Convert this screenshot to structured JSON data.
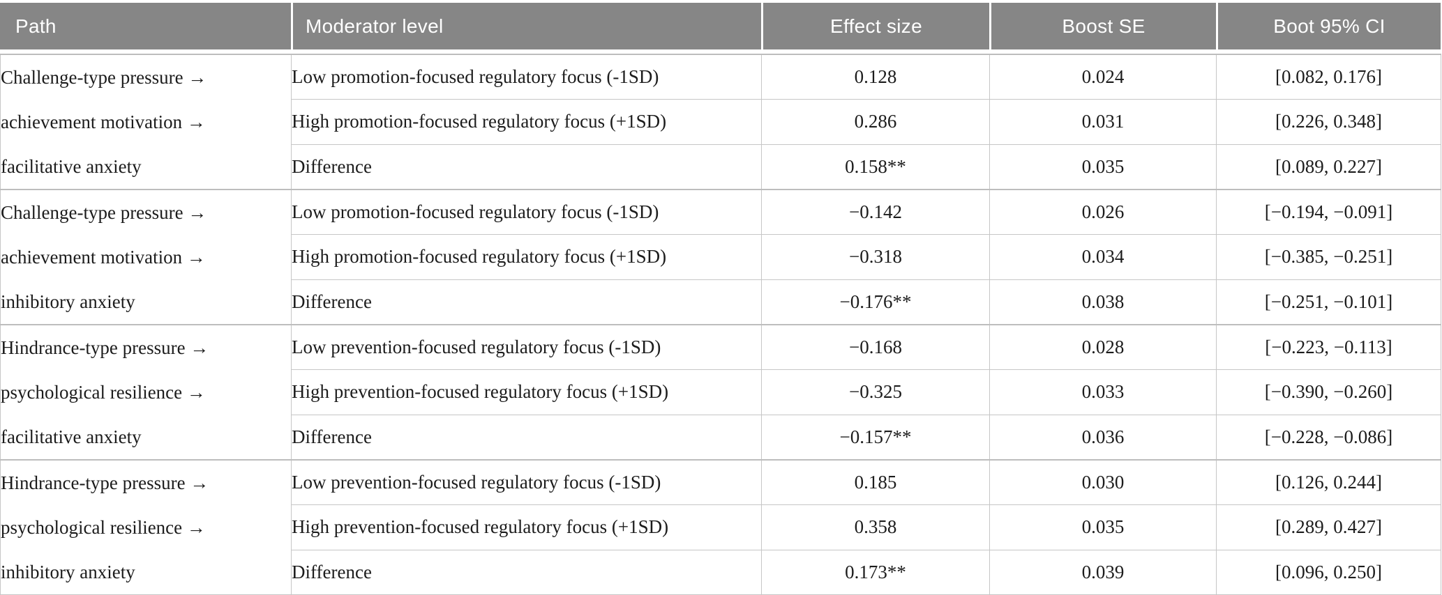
{
  "table": {
    "headers": {
      "path": "Path",
      "moderator": "Moderator level",
      "effect": "Effect size",
      "se": "Boost SE",
      "ci": "Boot 95% CI"
    },
    "groups": [
      {
        "path": [
          "Challenge-type pressure →",
          "achievement motivation →",
          "facilitative anxiety"
        ],
        "rows": [
          {
            "moderator": "Low promotion-focused regulatory focus (-1SD)",
            "effect": "0.128",
            "se": "0.024",
            "ci": "[0.082, 0.176]"
          },
          {
            "moderator": "High promotion-focused regulatory focus (+1SD)",
            "effect": "0.286",
            "se": "0.031",
            "ci": "[0.226, 0.348]"
          },
          {
            "moderator": "Difference",
            "effect": "0.158**",
            "se": "0.035",
            "ci": "[0.089, 0.227]"
          }
        ]
      },
      {
        "path": [
          "Challenge-type pressure →",
          "achievement motivation →",
          "inhibitory anxiety"
        ],
        "rows": [
          {
            "moderator": "Low promotion-focused regulatory focus (-1SD)",
            "effect": "−0.142",
            "se": "0.026",
            "ci": "[−0.194, −0.091]"
          },
          {
            "moderator": "High promotion-focused regulatory focus (+1SD)",
            "effect": "−0.318",
            "se": "0.034",
            "ci": "[−0.385, −0.251]"
          },
          {
            "moderator": "Difference",
            "effect": "−0.176**",
            "se": "0.038",
            "ci": "[−0.251, −0.101]"
          }
        ]
      },
      {
        "path": [
          "Hindrance-type pressure →",
          "psychological resilience →",
          "facilitative anxiety"
        ],
        "rows": [
          {
            "moderator": "Low prevention-focused regulatory focus (-1SD)",
            "effect": "−0.168",
            "se": "0.028",
            "ci": "[−0.223, −0.113]"
          },
          {
            "moderator": "High prevention-focused regulatory focus (+1SD)",
            "effect": "−0.325",
            "se": "0.033",
            "ci": "[−0.390, −0.260]"
          },
          {
            "moderator": "Difference",
            "effect": "−0.157**",
            "se": "0.036",
            "ci": "[−0.228, −0.086]"
          }
        ]
      },
      {
        "path": [
          "Hindrance-type pressure →",
          "psychological resilience →",
          "inhibitory anxiety"
        ],
        "rows": [
          {
            "moderator": "Low prevention-focused regulatory focus (-1SD)",
            "effect": "0.185",
            "se": "0.030",
            "ci": "[0.126, 0.244]"
          },
          {
            "moderator": "High prevention-focused regulatory focus (+1SD)",
            "effect": "0.358",
            "se": "0.035",
            "ci": "[0.289, 0.427]"
          },
          {
            "moderator": "Difference",
            "effect": "0.173**",
            "se": "0.039",
            "ci": "[0.096, 0.250]"
          }
        ]
      }
    ],
    "colors": {
      "header_bg": "#868686",
      "header_text": "#ffffff",
      "grid_border": "#c6c6c6",
      "group_border": "#bdbdbd",
      "body_text": "#1c1c1c"
    }
  }
}
